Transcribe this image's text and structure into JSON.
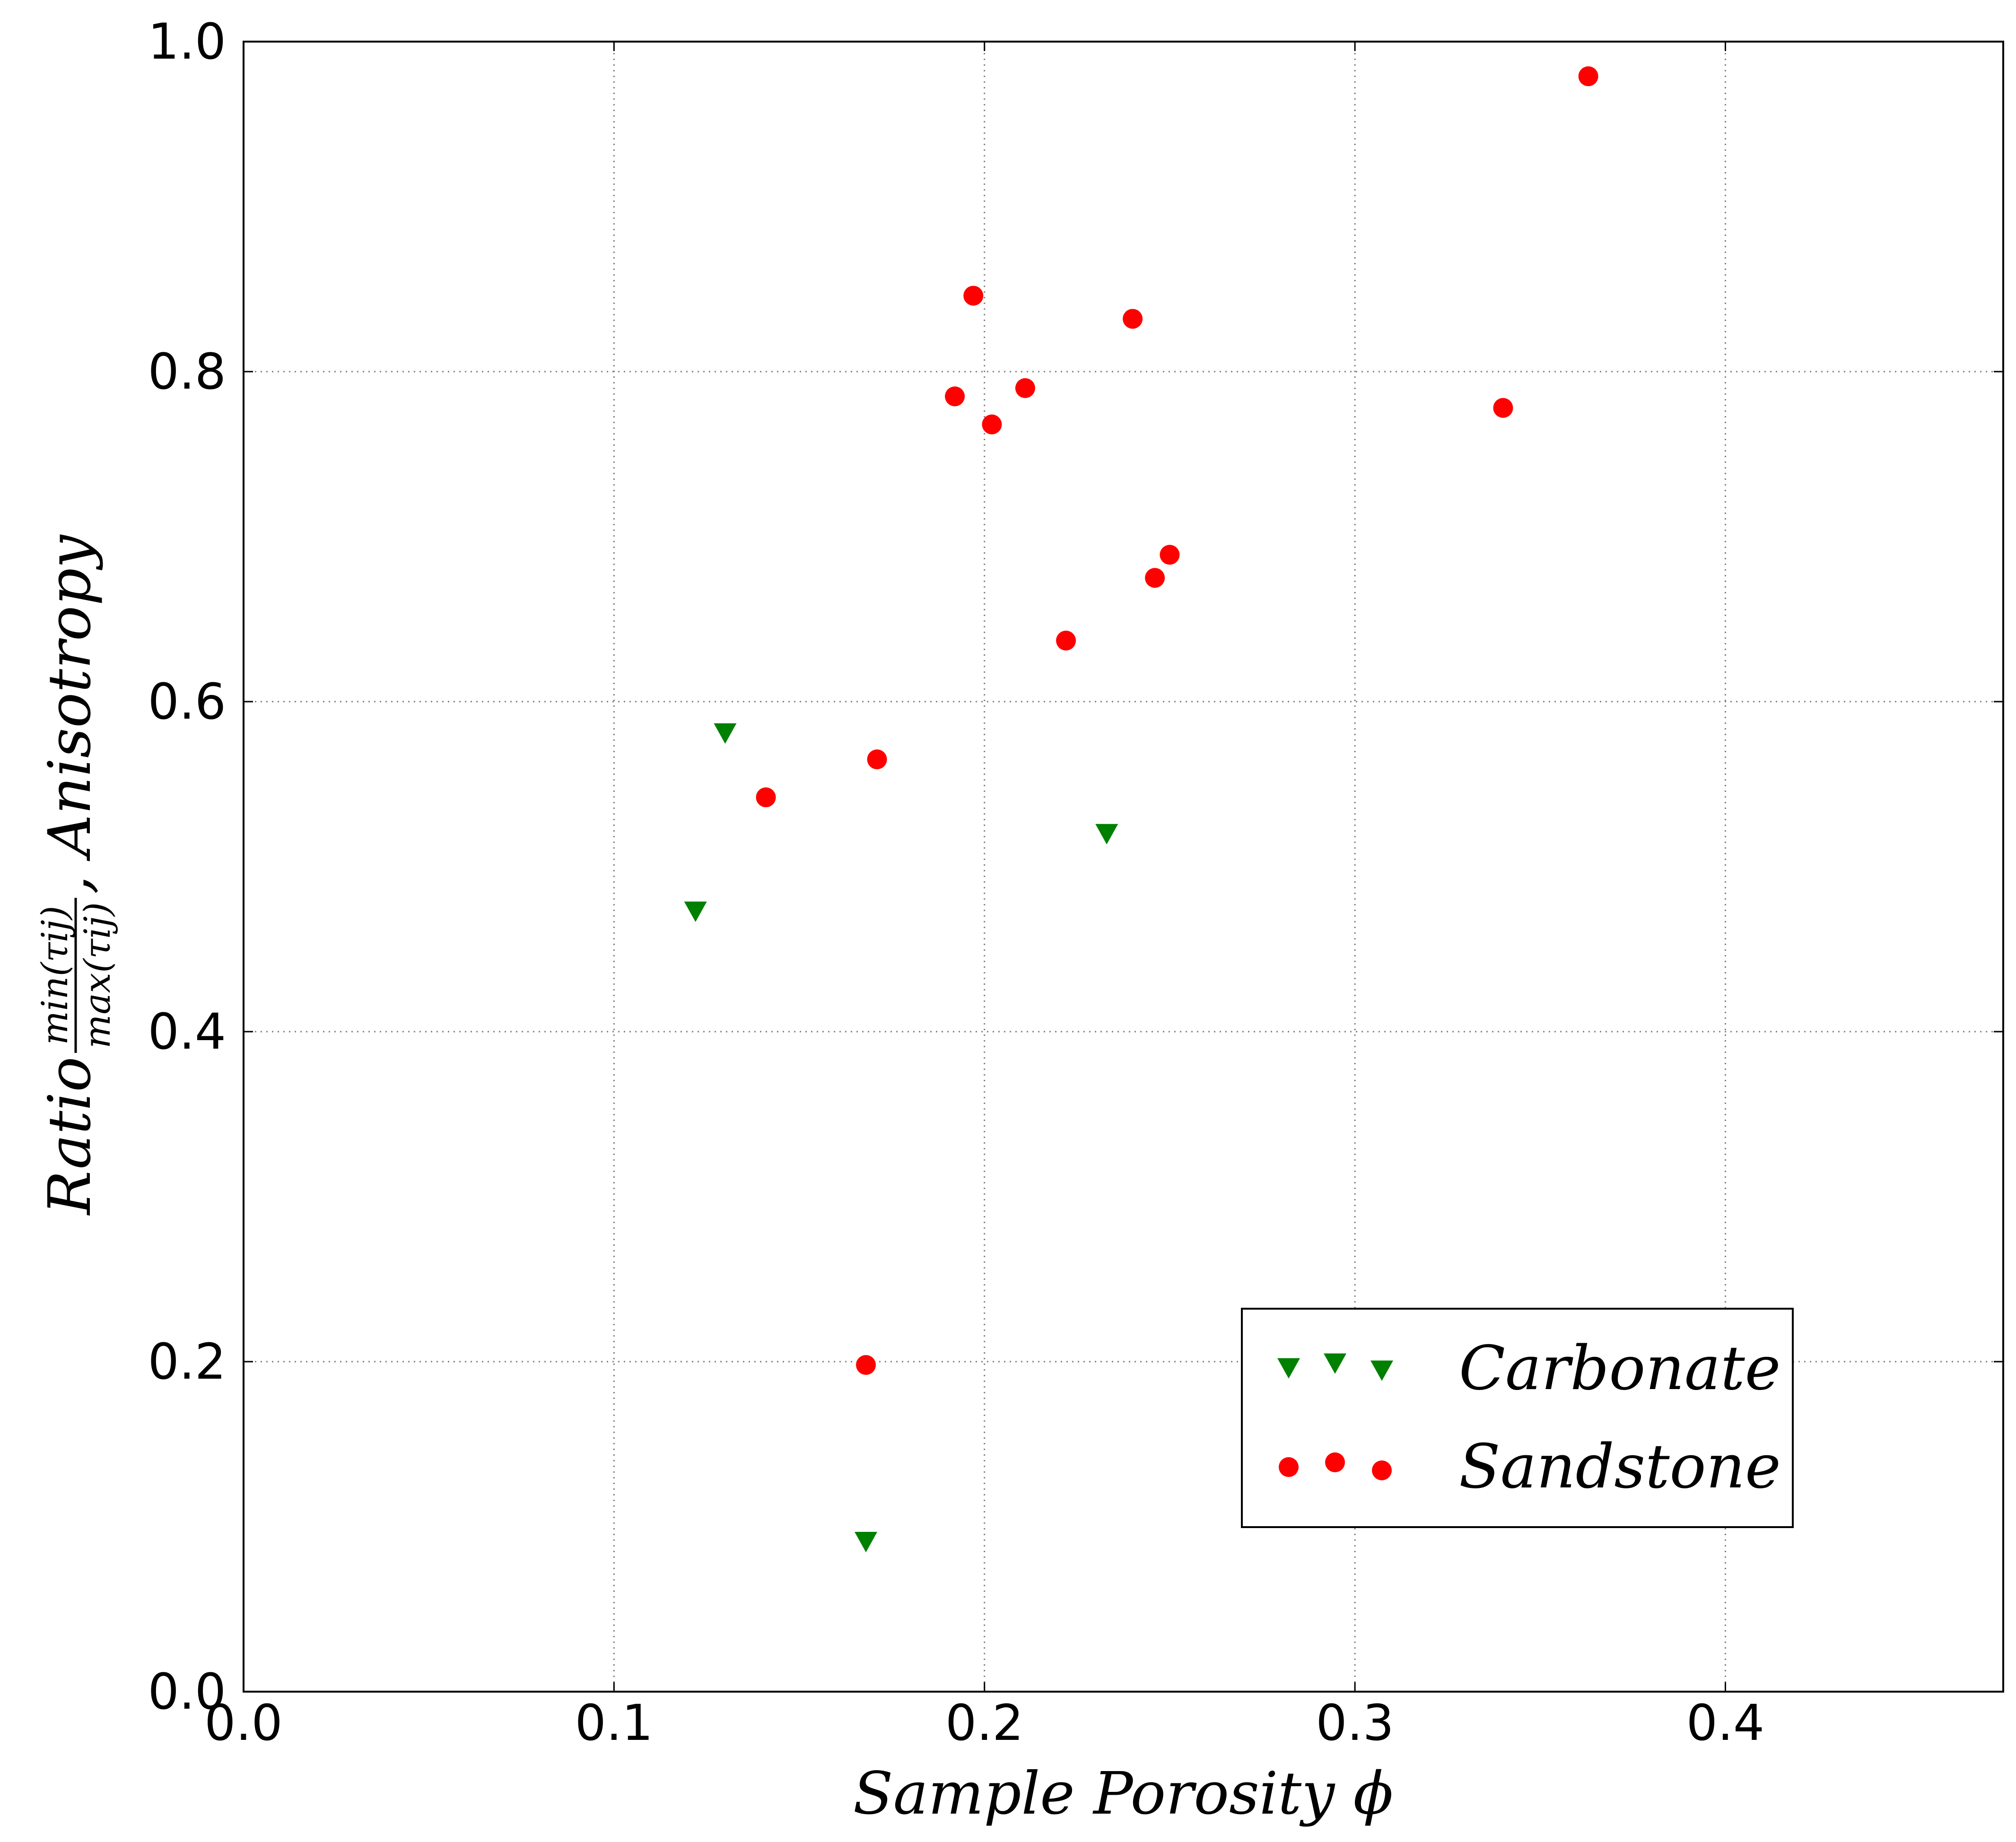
{
  "chart_data": {
    "type": "scatter",
    "xlabel": "Sample Porosity ϕ",
    "ylabel": {
      "prefix": "Ratio",
      "numerator": "min(τij)",
      "denominator": "max(τij)",
      "suffix": ", Anisotropy"
    },
    "xlim": [
      0.0,
      0.475
    ],
    "ylim": [
      0.0,
      1.0
    ],
    "x_ticks": [
      "0.0",
      "0.1",
      "0.2",
      "0.3",
      "0.4"
    ],
    "x_tick_values": [
      0.0,
      0.1,
      0.2,
      0.3,
      0.4
    ],
    "y_ticks": [
      "0.0",
      "0.2",
      "0.4",
      "0.6",
      "0.8",
      "1.0"
    ],
    "y_tick_values": [
      0.0,
      0.2,
      0.4,
      0.6,
      0.8,
      1.0
    ],
    "grid": true,
    "legend_position": "lower-right",
    "series": [
      {
        "name": "Carbonate",
        "marker": "triangle-down",
        "color": "#008000",
        "points": [
          {
            "x": 0.122,
            "y": 0.473
          },
          {
            "x": 0.13,
            "y": 0.581
          },
          {
            "x": 0.168,
            "y": 0.091
          },
          {
            "x": 0.233,
            "y": 0.52
          }
        ]
      },
      {
        "name": "Sandstone",
        "marker": "circle",
        "color": "#ff0000",
        "points": [
          {
            "x": 0.141,
            "y": 0.542
          },
          {
            "x": 0.168,
            "y": 0.198
          },
          {
            "x": 0.171,
            "y": 0.565
          },
          {
            "x": 0.192,
            "y": 0.785
          },
          {
            "x": 0.197,
            "y": 0.846
          },
          {
            "x": 0.202,
            "y": 0.768
          },
          {
            "x": 0.211,
            "y": 0.79
          },
          {
            "x": 0.222,
            "y": 0.637
          },
          {
            "x": 0.24,
            "y": 0.832
          },
          {
            "x": 0.246,
            "y": 0.675
          },
          {
            "x": 0.25,
            "y": 0.689
          },
          {
            "x": 0.34,
            "y": 0.778
          },
          {
            "x": 0.363,
            "y": 0.979
          }
        ]
      }
    ]
  }
}
